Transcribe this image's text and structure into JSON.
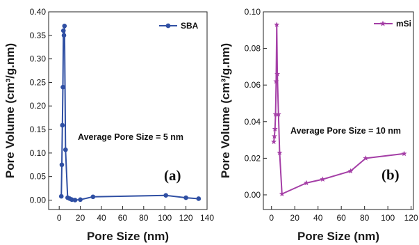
{
  "chart_data": [
    {
      "type": "line",
      "panel_label": "(a)",
      "xlabel": "Pore Size (nm)",
      "ylabel": "Pore Volume (cm³/g.nm)",
      "xlim": [
        -10,
        140
      ],
      "ylim": [
        -0.02,
        0.4
      ],
      "xticks": [
        0,
        20,
        40,
        60,
        80,
        100,
        120,
        140
      ],
      "yticks": [
        0.0,
        0.05,
        0.1,
        0.15,
        0.2,
        0.25,
        0.3,
        0.35,
        0.4
      ],
      "xtick_labels": [
        "0",
        "20",
        "40",
        "60",
        "80",
        "100",
        "120",
        "140"
      ],
      "ytick_labels": [
        "0.00",
        "0.05",
        "0.10",
        "0.15",
        "0.20",
        "0.25",
        "0.30",
        "0.35",
        "0.40"
      ],
      "legend_position": "top-right",
      "annotation": "Average Pore Size = 5 nm",
      "color": "#2f4fa3",
      "marker": "circle",
      "series": [
        {
          "name": "SBA",
          "x": [
            2,
            2.5,
            3,
            3.5,
            4,
            4.5,
            5,
            6,
            8,
            10,
            12,
            15,
            20,
            32,
            101,
            120,
            132
          ],
          "y": [
            0.008,
            0.075,
            0.159,
            0.24,
            0.36,
            0.35,
            0.37,
            0.107,
            0.005,
            0.003,
            0.001,
            0.0,
            0.001,
            0.007,
            0.01,
            0.005,
            0.003
          ]
        }
      ]
    },
    {
      "type": "line",
      "panel_label": "(b)",
      "xlabel": "Pore Size (nm)",
      "ylabel": "Pore Volume (cm³/g.nm)",
      "xlim": [
        -7,
        122
      ],
      "ylim": [
        -0.008,
        0.1
      ],
      "xticks": [
        0,
        20,
        40,
        60,
        80,
        100,
        120
      ],
      "yticks": [
        0.0,
        0.02,
        0.04,
        0.06,
        0.08,
        0.1
      ],
      "xtick_labels": [
        "0",
        "20",
        "40",
        "60",
        "80",
        "100",
        "120"
      ],
      "ytick_labels": [
        "0.00",
        "0.02",
        "0.04",
        "0.06",
        "0.08",
        "0.10"
      ],
      "legend_position": "top-right",
      "annotation": "Average Pore Size = 10 nm",
      "color": "#a43ea6",
      "marker": "star",
      "series": [
        {
          "name": "mSi",
          "x": [
            2,
            2.5,
            3,
            3.5,
            4,
            4.5,
            5,
            6,
            7,
            9,
            30,
            44,
            68,
            81,
            114
          ],
          "y": [
            0.029,
            0.032,
            0.036,
            0.044,
            0.062,
            0.093,
            0.066,
            0.044,
            0.023,
            0.0005,
            0.0065,
            0.0085,
            0.013,
            0.02,
            0.0225
          ]
        }
      ]
    }
  ]
}
